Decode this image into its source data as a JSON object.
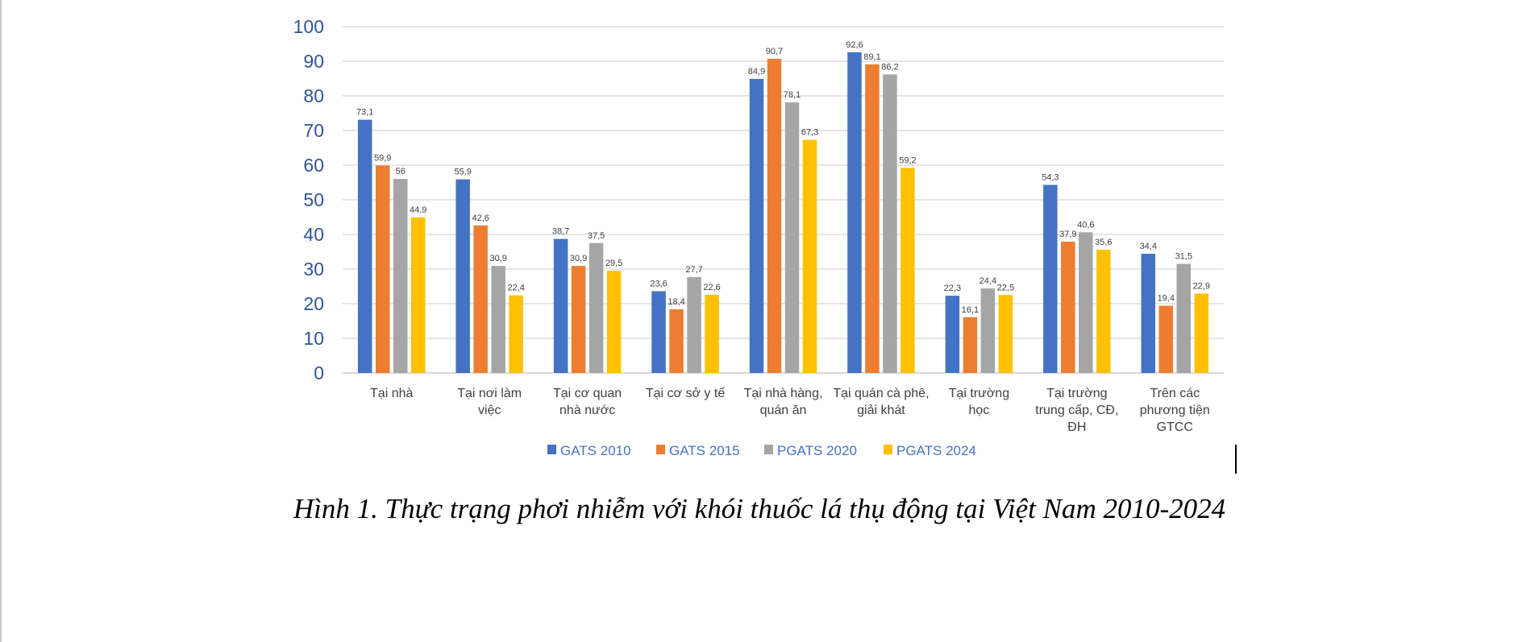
{
  "chart_data": {
    "type": "bar",
    "title": "",
    "xlabel": "",
    "ylabel": "",
    "ylim": [
      0,
      100
    ],
    "yticks": [
      "0",
      "10",
      "20",
      "30",
      "40",
      "50",
      "60",
      "70",
      "80",
      "90",
      "100"
    ],
    "grid": true,
    "legend_position": "bottom",
    "categories": [
      [
        "Tại nhà"
      ],
      [
        "Tại nơi làm",
        "việc"
      ],
      [
        "Tại cơ quan",
        "nhà nước"
      ],
      [
        "Tại cơ sở y tế"
      ],
      [
        "Tại nhà hàng,",
        "quán ăn"
      ],
      [
        "Tại quán cà phê,",
        "giải khát"
      ],
      [
        "Tại trường",
        "học"
      ],
      [
        "Tại trường",
        "trung cấp, CĐ,",
        "ĐH"
      ],
      [
        "Trên các",
        "phương tiện",
        "GTCC"
      ]
    ],
    "series": [
      {
        "name": "GATS 2010",
        "color": "#4472C4",
        "values": [
          73.1,
          55.9,
          38.7,
          23.6,
          84.9,
          92.6,
          22.3,
          54.3,
          34.4
        ],
        "labels": [
          "73,1",
          "55,9",
          "38,7",
          "23,6",
          "84,9",
          "92,6",
          "22,3",
          "54,3",
          "34,4"
        ]
      },
      {
        "name": "GATS 2015",
        "color": "#ED7D31",
        "values": [
          59.9,
          42.6,
          30.9,
          18.4,
          90.7,
          89.1,
          16.1,
          37.9,
          19.4
        ],
        "labels": [
          "59,9",
          "42,6",
          "30,9",
          "18,4",
          "90,7",
          "89,1",
          "16,1",
          "37,9",
          "19,4"
        ]
      },
      {
        "name": "PGATS 2020",
        "color": "#A5A5A5",
        "values": [
          56,
          30.9,
          37.5,
          27.7,
          78.1,
          86.2,
          24.4,
          40.6,
          31.5
        ],
        "labels": [
          "56",
          "30,9",
          "37,5",
          "27,7",
          "78,1",
          "86,2",
          "24,4",
          "40,6",
          "31,5"
        ]
      },
      {
        "name": "PGATS 2024",
        "color": "#FFC000",
        "values": [
          44.9,
          22.4,
          29.5,
          22.6,
          67.3,
          59.2,
          22.5,
          35.6,
          22.9
        ],
        "labels": [
          "44,9",
          "22,4",
          "29,5",
          "22,6",
          "67,3",
          "59,2",
          "22,5",
          "35,6",
          "22,9"
        ]
      }
    ]
  },
  "caption": "Hình 1. Thực trạng phơi nhiễm với khói thuốc lá thụ động tại Việt Nam 2010-2024",
  "colors": {
    "axis_text": "#2F5597",
    "legend_text": "#4472C4",
    "data_label": "#404040",
    "category_text": "#404040",
    "grid": "#E6E6E6"
  }
}
